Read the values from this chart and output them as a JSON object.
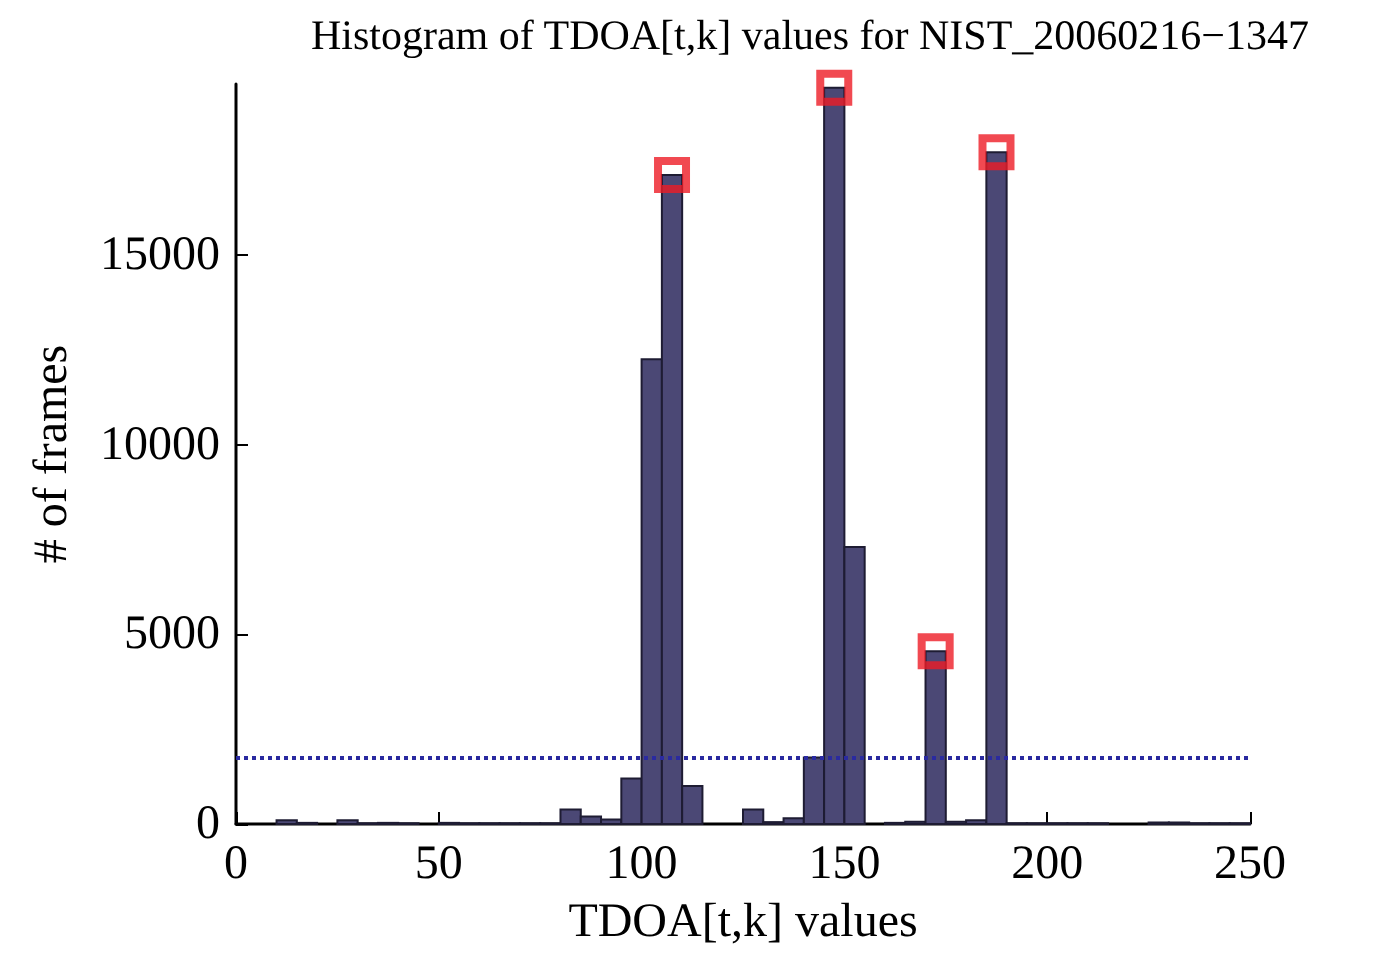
{
  "chart_data": {
    "type": "histogram",
    "title": "Histogram of TDOA[t,k] values for NIST_20060216−1347",
    "xlabel": "TDOA[t,k] values",
    "ylabel": "# of frames",
    "bins": [
      10,
      15,
      20,
      25,
      30,
      35,
      40,
      45,
      50,
      55,
      60,
      65,
      70,
      75,
      80,
      85,
      90,
      95,
      100,
      105,
      110,
      115,
      120,
      125,
      130,
      135,
      140,
      145,
      150,
      155,
      160,
      165,
      170,
      175,
      180,
      185,
      190,
      195,
      200,
      205,
      210,
      215,
      220,
      225,
      230,
      235,
      240,
      245,
      250
    ],
    "values": [
      100,
      30,
      0,
      100,
      20,
      30,
      20,
      0,
      30,
      20,
      20,
      20,
      20,
      20,
      380,
      200,
      120,
      1200,
      12250,
      17100,
      1000,
      0,
      0,
      380,
      50,
      150,
      1750,
      19400,
      7300,
      0,
      30,
      60,
      4550,
      60,
      100,
      17700,
      20,
      20,
      20,
      20,
      20,
      0,
      0,
      40,
      40,
      20,
      20,
      20
    ],
    "color": "#4b4875",
    "series": [
      {
        "type": "scatter",
        "color": "#ee1c25",
        "marker": "square",
        "x": [
          107.5,
          147.5,
          172.5,
          187.5
        ],
        "values": [
          17100,
          19400,
          4550,
          17700
        ]
      }
    ],
    "ref_lines": [
      {
        "axis": "y",
        "value": 1750,
        "color": "#2a2aa0",
        "line_style": "dotted"
      }
    ],
    "xlim": [
      0,
      250
    ],
    "xticks": [
      0,
      50,
      100,
      150,
      200,
      250
    ],
    "ylim": [
      0,
      19500
    ],
    "yticks": [
      0,
      5000,
      10000,
      15000
    ],
    "grid": false
  }
}
